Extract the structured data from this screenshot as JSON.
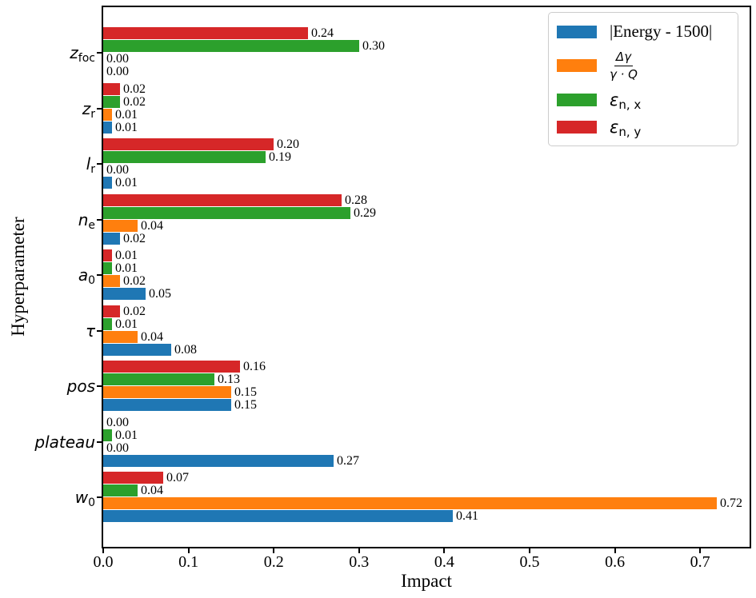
{
  "figure": {
    "background": "#ffffff",
    "frame_color": "#000000"
  },
  "chart_data": {
    "type": "bar",
    "orientation": "horizontal",
    "title": "",
    "xlabel": "Impact",
    "ylabel": "Hyperparameter",
    "xlim": [
      0,
      0.758
    ],
    "grid": false,
    "legend_position": "upper right",
    "xticks": [
      {
        "value": 0.0,
        "label": "0.0"
      },
      {
        "value": 0.1,
        "label": "0.1"
      },
      {
        "value": 0.2,
        "label": "0.2"
      },
      {
        "value": 0.3,
        "label": "0.3"
      },
      {
        "value": 0.4,
        "label": "0.4"
      },
      {
        "value": 0.5,
        "label": "0.5"
      },
      {
        "value": 0.6,
        "label": "0.6"
      },
      {
        "value": 0.7,
        "label": "0.7"
      }
    ],
    "categories": [
      "z_foc",
      "z_r",
      "l_r",
      "n_e",
      "a_0",
      "tau",
      "pos",
      "plateau",
      "w_0"
    ],
    "category_labels": [
      {
        "base": "z",
        "sub": "foc"
      },
      {
        "base": "z",
        "sub": "r"
      },
      {
        "base": "l",
        "sub": "r"
      },
      {
        "base": "n",
        "sub": "e"
      },
      {
        "base": "a",
        "sub": "0"
      },
      {
        "base": "τ",
        "sub": ""
      },
      {
        "base": "pos",
        "sub": ""
      },
      {
        "base": "plateau",
        "sub": ""
      },
      {
        "base": "w",
        "sub": "0"
      }
    ],
    "series": [
      {
        "name": "|Energy - 1500|",
        "color": "#1f77b4",
        "values": [
          0.0,
          0.01,
          0.01,
          0.02,
          0.05,
          0.08,
          0.15,
          0.27,
          0.41
        ],
        "labels": [
          "0.00",
          "0.01",
          "0.01",
          "0.02",
          "0.05",
          "0.08",
          "0.15",
          "0.27",
          "0.41"
        ]
      },
      {
        "name": "Δγ/(γ·Q)",
        "color": "#ff7f0e",
        "values": [
          0.0,
          0.01,
          0.0,
          0.04,
          0.02,
          0.04,
          0.15,
          0.0,
          0.72
        ],
        "labels": [
          "0.00",
          "0.01",
          "0.00",
          "0.04",
          "0.02",
          "0.04",
          "0.15",
          "0.00",
          "0.72"
        ]
      },
      {
        "name": "ε_n,x",
        "color": "#2ca02c",
        "values": [
          0.3,
          0.02,
          0.19,
          0.29,
          0.01,
          0.01,
          0.13,
          0.01,
          0.04
        ],
        "labels": [
          "0.30",
          "0.02",
          "0.19",
          "0.29",
          "0.01",
          "0.01",
          "0.13",
          "0.01",
          "0.04"
        ]
      },
      {
        "name": "ε_n,y",
        "color": "#d62728",
        "values": [
          0.24,
          0.02,
          0.2,
          0.28,
          0.01,
          0.02,
          0.16,
          0.0,
          0.07
        ],
        "labels": [
          "0.24",
          "0.02",
          "0.20",
          "0.28",
          "0.01",
          "0.02",
          "0.16",
          "0.00",
          "0.07"
        ]
      }
    ],
    "bar_display_order_top_to_bottom": [
      3,
      2,
      1,
      0
    ],
    "legend": {
      "items": [
        {
          "style": "serif",
          "text": "|Energy - 1500|",
          "color": "#1f77b4"
        },
        {
          "style": "fraction",
          "numerator": "Δγ",
          "denominator": "γ · Q",
          "color": "#ff7f0e"
        },
        {
          "style": "math",
          "base": "ε",
          "sub": "n, x",
          "color": "#2ca02c"
        },
        {
          "style": "math",
          "base": "ε",
          "sub": "n, y",
          "color": "#d62728"
        }
      ]
    }
  }
}
